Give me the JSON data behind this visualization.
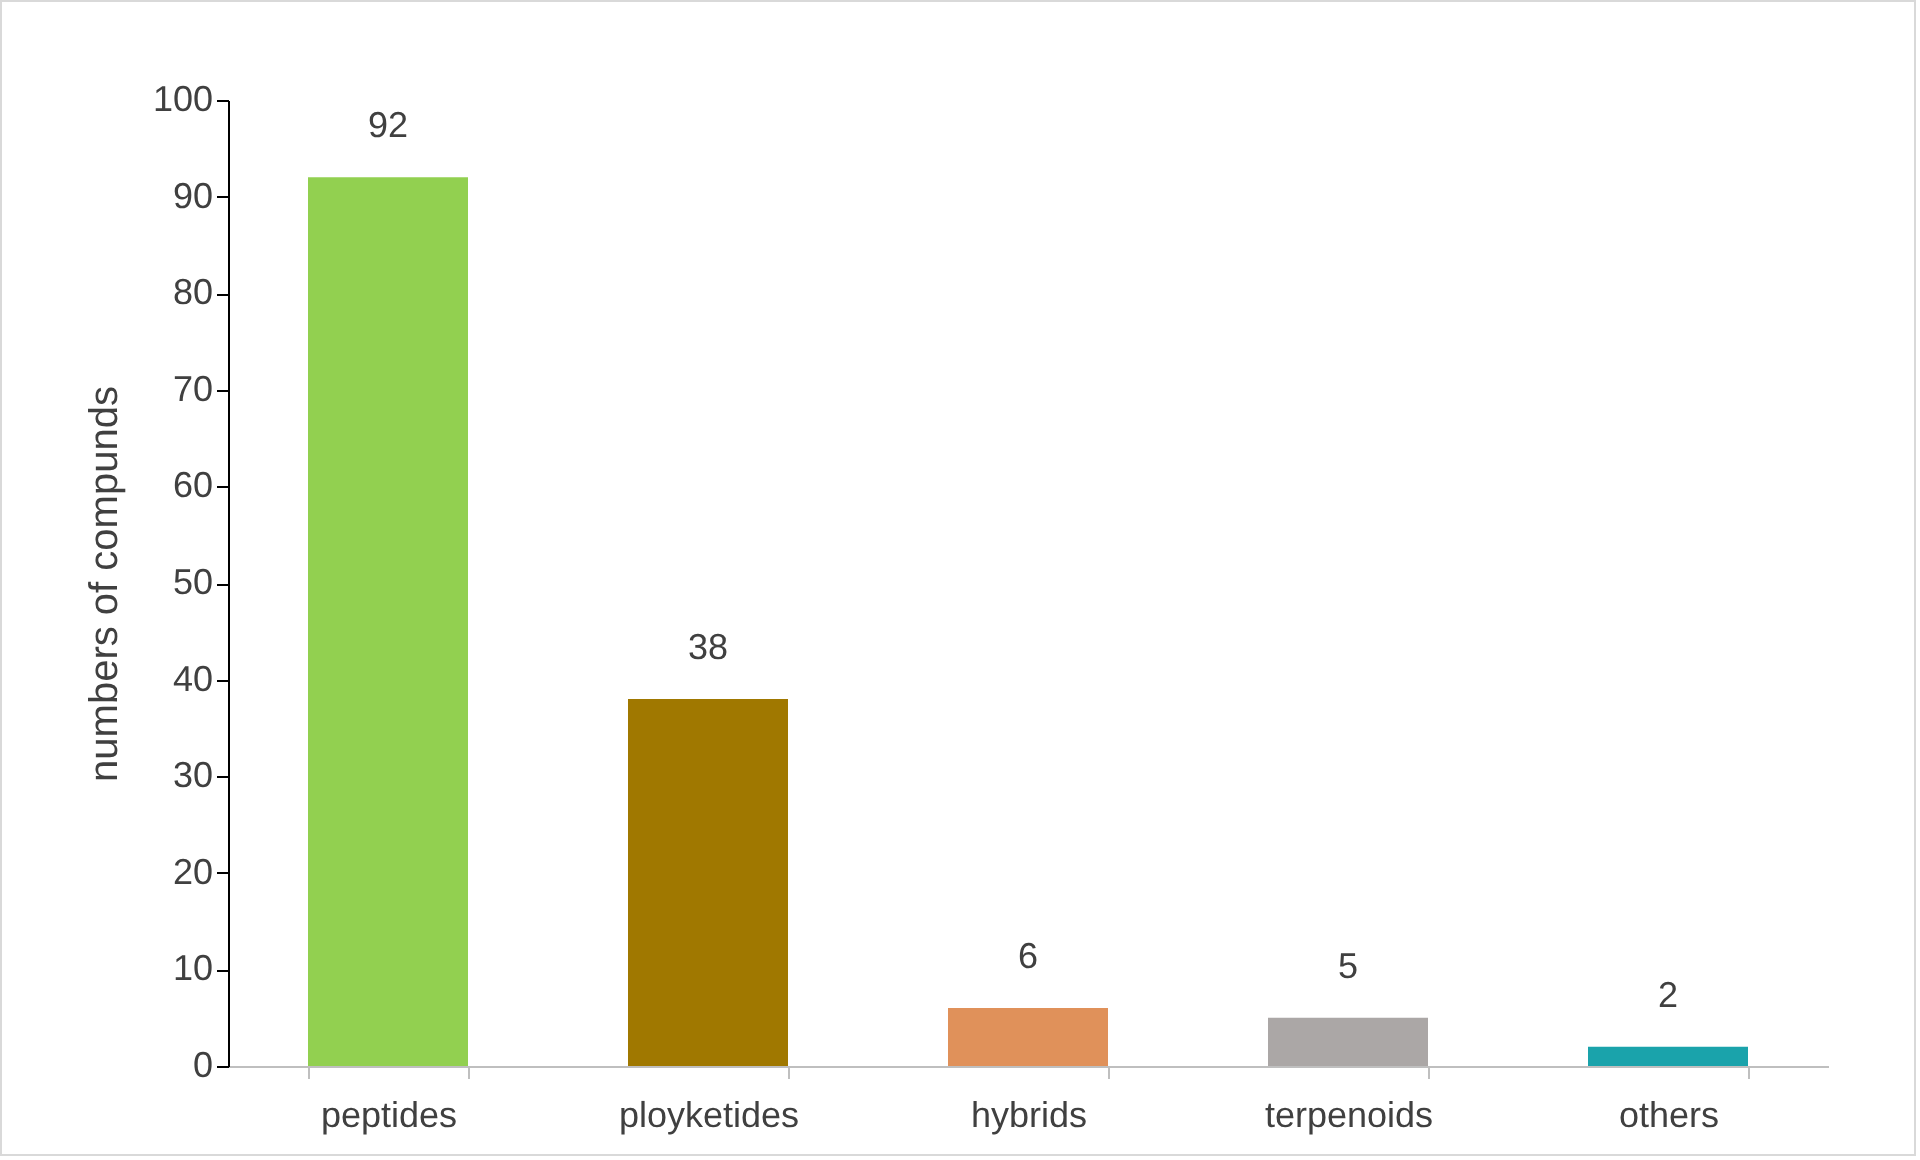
{
  "chart_data": {
    "type": "bar",
    "ylabel": "numbers of compunds",
    "categories": [
      "peptides",
      "ployketides",
      "hybrids",
      "terpenoids",
      "others"
    ],
    "values": [
      92,
      38,
      6,
      5,
      2
    ],
    "colors": [
      "#92d050",
      "#a07800",
      "#e0915a",
      "#aba7a6",
      "#1aa3ab"
    ],
    "ylim": [
      0,
      100
    ],
    "yticks": [
      0,
      10,
      20,
      30,
      40,
      50,
      60,
      70,
      80,
      90,
      100
    ],
    "grid": false,
    "data_labels": true
  }
}
